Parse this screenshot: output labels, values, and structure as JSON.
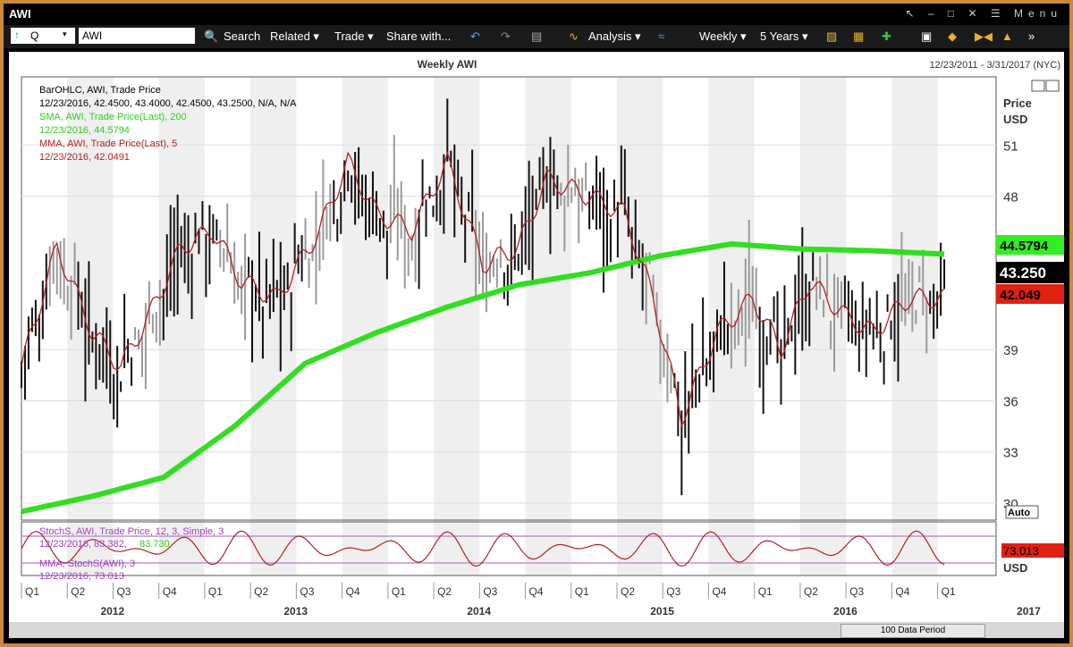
{
  "window": {
    "title": "AWI",
    "controls": "↖ – □ ✕ ☰ Menu"
  },
  "toolbar": {
    "security_type": "Q",
    "ticker": "AWI",
    "search": "Search",
    "related": "Related ▾",
    "trade": "Trade ▾",
    "share": "Share with...",
    "analysis": "Analysis ▾",
    "period": "Weekly ▾",
    "range": "5 Years ▾"
  },
  "header": {
    "title": "Weekly AWI",
    "date_range": "12/23/2011 - 3/31/2017 (NYC)"
  },
  "legend": {
    "l1": "BarOHLC, AWI, Trade Price",
    "l2": "12/23/2016, 42.4500, 43.4000, 42.4500, 43.2500, N/A, N/A",
    "l3": "SMA, AWI, Trade Price(Last), 200",
    "l4": "12/23/2016, 44.5794",
    "l5": "MMA, AWI, Trade Price(Last), 5",
    "l6": "12/23/2016, 42.0491"
  },
  "lower_legend": {
    "l1": "StochS, AWI, Trade Price, 12, 3, Simple, 3",
    "l2a": "12/23/2016, 83.382,",
    "l2b": "83.730",
    "l3": "MMA, StochS(AWI), 3",
    "l4": "12/23/2016, 73.013"
  },
  "axis": {
    "price_label": "Price",
    "currency": "USD",
    "auto": "Auto",
    "lower_currency": "USD"
  },
  "badges": {
    "sma": "44.5794",
    "last": "43.250",
    "mma": "42.049",
    "stoch": "73.013"
  },
  "bottom": {
    "data_period": "100 Data Period"
  },
  "colors": {
    "sma": "#33dd22",
    "mma": "#b22222",
    "stoch": "#b22222",
    "bars_black": "#111111",
    "bars_gray": "#9a9a9a",
    "band": "#c090d0",
    "badge_red": "#e02010"
  },
  "chart_data": {
    "type": "line",
    "title": "Weekly AWI",
    "ylabel": "Price USD",
    "ylim": [
      29,
      55
    ],
    "y_ticks": [
      30,
      33,
      36,
      39,
      48,
      51
    ],
    "x_quarter_labels": [
      "Q1",
      "Q2",
      "Q3",
      "Q4",
      "Q1",
      "Q2",
      "Q3",
      "Q4",
      "Q1",
      "Q2",
      "Q3",
      "Q4",
      "Q1",
      "Q2",
      "Q3",
      "Q4",
      "Q1",
      "Q2",
      "Q3",
      "Q4",
      "Q1"
    ],
    "x_year_labels": [
      "2012",
      "2013",
      "2014",
      "2015",
      "2016",
      "2017"
    ],
    "series": [
      {
        "name": "SMA, AWI, Trade Price(Last), 200",
        "x_weeks": [
          0,
          20,
          40,
          60,
          80,
          100,
          120,
          140,
          160,
          180,
          200,
          220,
          240,
          260
        ],
        "values": [
          29.5,
          30.4,
          31.5,
          34.5,
          38.2,
          40.0,
          41.5,
          42.8,
          43.5,
          44.5,
          45.2,
          44.9,
          44.8,
          44.6
        ]
      },
      {
        "name": "MMA, AWI, Trade Price(Last), 5",
        "x_weeks": [
          0,
          10,
          20,
          28,
          36,
          45,
          54,
          62,
          72,
          84,
          92,
          100,
          110,
          120,
          130,
          140,
          148,
          160,
          170,
          178,
          186,
          196,
          206,
          214,
          222,
          232,
          240,
          250,
          260
        ],
        "values": [
          38,
          45,
          40,
          38,
          41,
          45,
          46,
          43,
          42,
          46,
          50,
          47,
          46,
          50,
          44,
          45,
          49,
          48,
          47,
          42,
          35,
          40,
          42,
          39,
          43,
          41,
          40,
          42,
          42
        ]
      },
      {
        "name": "StochS, AWI, Trade Price, 12, 3, Simple, 3",
        "lower": true
      },
      {
        "name": "MMA, StochS(AWI), 3",
        "lower": true
      }
    ],
    "last": {
      "sma": 44.5794,
      "close": 43.25,
      "mma": 42.0491,
      "stoch": 73.013
    }
  }
}
